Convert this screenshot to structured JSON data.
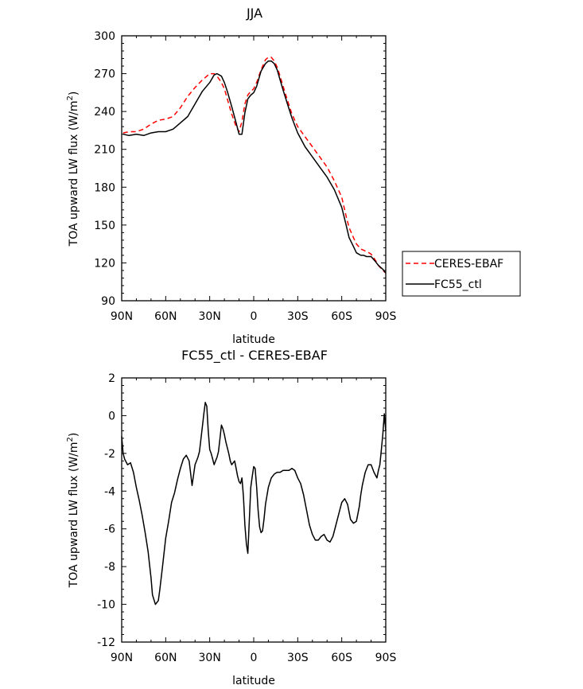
{
  "colors": {
    "ceres": "#ff0000",
    "fc55": "#000000",
    "diff": "#000000"
  },
  "chart_data": [
    {
      "type": "line",
      "title": "JJA",
      "xlabel": "latitude",
      "ylabel": "TOA upward LW flux (W/m",
      "ylabel_sup": "2",
      "ylabel_close": ")",
      "xlim": [
        90,
        -90
      ],
      "ylim": [
        90,
        300
      ],
      "xticks": [
        90,
        60,
        30,
        0,
        -30,
        -60,
        -90
      ],
      "xtick_labels": [
        "90N",
        "60N",
        "30N",
        "0",
        "30S",
        "60S",
        "90S"
      ],
      "yticks": [
        90,
        120,
        150,
        180,
        210,
        240,
        270,
        300
      ],
      "ytick_labels": [
        "90",
        "120",
        "150",
        "180",
        "210",
        "240",
        "270",
        "300"
      ],
      "legend": {
        "position": "right",
        "entries": [
          {
            "label": "CERES-EBAF",
            "style": "dashed",
            "color": "#ff0000"
          },
          {
            "label": "FC55_ctl",
            "style": "solid",
            "color": "#000000"
          }
        ]
      },
      "series": [
        {
          "name": "CERES-EBAF",
          "style": "dashed",
          "color": "#ff0000",
          "x": [
            89,
            85,
            80,
            75,
            70,
            65,
            60,
            55,
            50,
            45,
            40,
            35,
            30,
            27,
            25,
            22,
            20,
            18,
            15,
            12,
            10,
            8,
            6,
            4,
            2,
            0,
            -2,
            -5,
            -8,
            -10,
            -12,
            -14,
            -16,
            -18,
            -20,
            -23,
            -26,
            -30,
            -35,
            -40,
            -45,
            -50,
            -55,
            -60,
            -63,
            -65,
            -68,
            -70,
            -73,
            -75,
            -77,
            -80,
            -83,
            -85,
            -88,
            -90
          ],
          "y": [
            223,
            224,
            224,
            226,
            230,
            233,
            234,
            236,
            243,
            252,
            259,
            265,
            270,
            270,
            268,
            263,
            258,
            250,
            238,
            228,
            224,
            232,
            246,
            253,
            256,
            258,
            263,
            273,
            281,
            283,
            283,
            280,
            275,
            268,
            260,
            249,
            238,
            228,
            220,
            212,
            204,
            196,
            185,
            172,
            157,
            148,
            140,
            135,
            131,
            130,
            129,
            127,
            122,
            118,
            114,
            112
          ]
        },
        {
          "name": "FC55_ctl",
          "style": "solid",
          "color": "#000000",
          "x": [
            89,
            85,
            80,
            75,
            70,
            65,
            60,
            55,
            50,
            45,
            40,
            35,
            30,
            27,
            25,
            22,
            20,
            18,
            15,
            12,
            10,
            8,
            6,
            4,
            2,
            0,
            -2,
            -5,
            -8,
            -10,
            -12,
            -14,
            -16,
            -18,
            -20,
            -23,
            -26,
            -30,
            -35,
            -40,
            -45,
            -50,
            -55,
            -60,
            -63,
            -65,
            -68,
            -70,
            -73,
            -75,
            -77,
            -80,
            -83,
            -85,
            -88,
            -90
          ],
          "y": [
            222,
            221,
            222,
            221,
            223,
            224,
            224,
            226,
            231,
            236,
            246,
            256,
            263,
            269,
            270,
            268,
            263,
            256,
            244,
            231,
            222,
            222,
            239,
            250,
            253,
            255,
            260,
            272,
            278,
            280,
            280,
            278,
            273,
            265,
            257,
            246,
            235,
            223,
            212,
            204,
            196,
            188,
            178,
            164,
            150,
            140,
            133,
            128,
            126,
            126,
            125,
            125,
            121,
            118,
            115,
            112
          ]
        }
      ]
    },
    {
      "type": "line",
      "title": "FC55_ctl - CERES-EBAF",
      "xlabel": "latitude",
      "ylabel": "TOA upward LW flux (W/m",
      "ylabel_sup": "2",
      "ylabel_close": ")",
      "xlim": [
        90,
        -90
      ],
      "ylim": [
        -12,
        2
      ],
      "xticks": [
        90,
        60,
        30,
        0,
        -30,
        -60,
        -90
      ],
      "xtick_labels": [
        "90N",
        "60N",
        "30N",
        "0",
        "30S",
        "60S",
        "90S"
      ],
      "yticks": [
        -12,
        -10,
        -8,
        -6,
        -4,
        -2,
        0,
        2
      ],
      "ytick_labels": [
        "-12",
        "-10",
        "-8",
        "-6",
        "-4",
        "-2",
        "0",
        "2"
      ],
      "series": [
        {
          "style": "solid",
          "color": "#000000",
          "x": [
            90,
            89,
            88,
            86,
            84,
            82,
            80,
            78,
            76,
            74,
            72,
            70,
            69,
            67,
            66,
            65,
            64,
            62,
            60,
            58,
            56,
            54,
            52,
            50,
            48,
            46,
            44,
            42,
            40,
            38,
            37,
            35,
            34,
            33,
            32,
            31,
            30,
            29,
            28,
            27,
            26,
            25,
            24,
            23,
            22,
            21,
            20,
            19,
            18,
            17,
            16,
            15,
            14,
            13,
            12,
            11,
            10,
            9,
            8,
            7,
            6,
            5,
            4,
            3,
            2,
            1,
            0,
            -1,
            -2,
            -3,
            -4,
            -5,
            -6,
            -7,
            -8,
            -10,
            -12,
            -14,
            -16,
            -18,
            -20,
            -22,
            -24,
            -26,
            -28,
            -30,
            -32,
            -34,
            -36,
            -38,
            -40,
            -42,
            -44,
            -46,
            -48,
            -50,
            -52,
            -54,
            -56,
            -58,
            -60,
            -62,
            -64,
            -66,
            -68,
            -70,
            -71,
            -72,
            -73,
            -74,
            -76,
            -78,
            -80,
            -82,
            -84,
            -85,
            -86,
            -87,
            -88,
            -89,
            -90
          ],
          "y": [
            -1.1,
            -2.0,
            -2.3,
            -2.6,
            -2.5,
            -3.0,
            -3.8,
            -4.5,
            -5.3,
            -6.2,
            -7.2,
            -8.6,
            -9.5,
            -10.0,
            -9.9,
            -9.8,
            -9.2,
            -7.9,
            -6.5,
            -5.6,
            -4.6,
            -4.1,
            -3.4,
            -2.8,
            -2.3,
            -2.1,
            -2.4,
            -3.7,
            -2.6,
            -2.2,
            -1.9,
            -0.6,
            0.1,
            0.7,
            0.5,
            -0.8,
            -1.8,
            -2.0,
            -2.3,
            -2.6,
            -2.4,
            -2.2,
            -1.9,
            -1.2,
            -0.5,
            -0.7,
            -1.0,
            -1.4,
            -1.7,
            -2.0,
            -2.4,
            -2.6,
            -2.5,
            -2.4,
            -2.8,
            -3.2,
            -3.5,
            -3.6,
            -3.3,
            -4.3,
            -5.8,
            -6.8,
            -7.3,
            -5.5,
            -3.8,
            -3.2,
            -2.7,
            -2.8,
            -3.8,
            -5.0,
            -5.9,
            -6.2,
            -6.1,
            -5.5,
            -4.7,
            -3.8,
            -3.3,
            -3.1,
            -3.0,
            -3.0,
            -2.9,
            -2.9,
            -2.9,
            -2.8,
            -2.9,
            -3.3,
            -3.6,
            -4.2,
            -5.0,
            -5.8,
            -6.3,
            -6.6,
            -6.6,
            -6.4,
            -6.3,
            -6.6,
            -6.7,
            -6.4,
            -5.8,
            -5.2,
            -4.6,
            -4.4,
            -4.7,
            -5.5,
            -5.7,
            -5.6,
            -5.2,
            -4.8,
            -4.2,
            -3.7,
            -3.0,
            -2.6,
            -2.6,
            -3.0,
            -3.3,
            -2.9,
            -2.6,
            -1.8,
            -1.0,
            0.1,
            -0.8
          ]
        }
      ]
    }
  ]
}
